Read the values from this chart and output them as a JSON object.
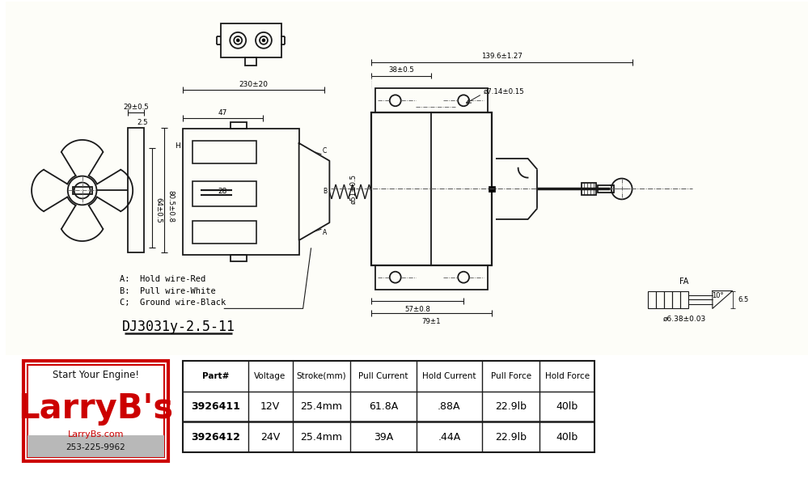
{
  "bg_color": "#ffffff",
  "table_headers": [
    "Part#",
    "Voltage",
    "Stroke(mm)",
    "Pull Current",
    "Hold Current",
    "Pull Force",
    "Hold Force"
  ],
  "table_row1": [
    "3926411",
    "12V",
    "25.4mm",
    "61.8A",
    ".88A",
    "22.9lb",
    "40lb"
  ],
  "table_row2": [
    "3926412",
    "24V",
    "25.4mm",
    "39A",
    ".44A",
    "22.9lb",
    "40lb"
  ],
  "logo_text_line1": "Start Your Engine!",
  "logo_text_line2": "LarryB's",
  "logo_text_line3": "LarryBs.com",
  "logo_text_line4": "253-225-9962",
  "annotations": {
    "dim1": "29±0.5",
    "dim2": "2.5",
    "dim3": "230±20",
    "dim4": "47",
    "dim5": "64±0.5",
    "dim6": "80.5±0.8",
    "dim7": "28",
    "dim8": "38±0.5",
    "dim9": "139.6±1.27",
    "dim10": "ø7.14±0.15",
    "dim11": "ø51±0.5",
    "dim12": "57±0.8",
    "dim13": "79±1",
    "dim14": "ø6.38±0.03",
    "dim15": "6.5",
    "dim16": "10°",
    "wire_a": "A:  Hold wire-Red",
    "wire_b": "B:  Pull wire-White",
    "wire_c": "C;  Ground wire-Black",
    "model": "DJ3031y-2.5-11",
    "fa_label": "FA"
  }
}
